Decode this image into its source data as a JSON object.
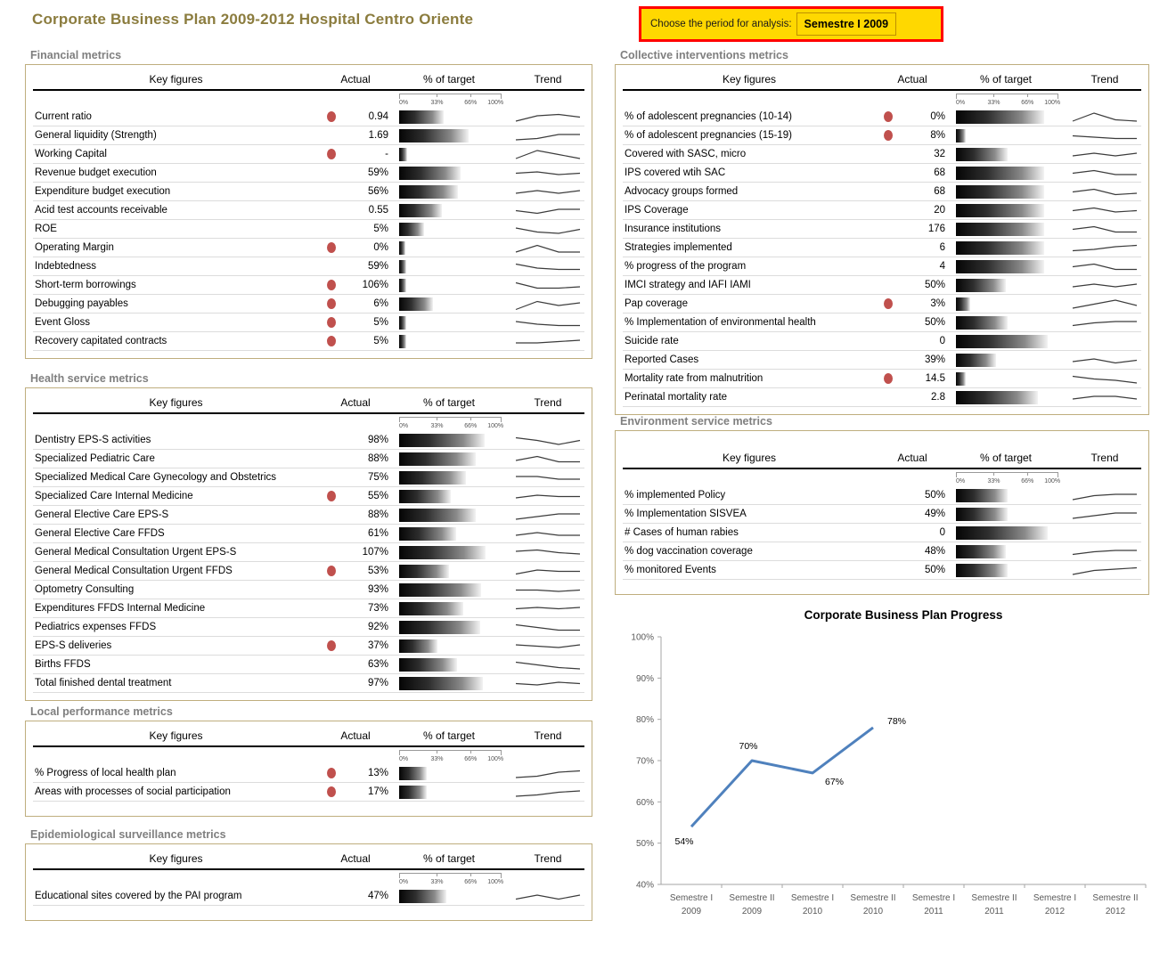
{
  "page": {
    "title": "Corporate Business Plan 2009-2012 Hospital Centro Oriente",
    "period_chooser": {
      "label": "Choose the period for analysis:",
      "value": "Semestre I 2009"
    }
  },
  "colors": {
    "title_color": "#8B7C3E",
    "section_title": "#7F7F7F",
    "box_border": "#BFAE7E",
    "alert_dot": "#C0504D",
    "chart_line": "#4F81BD",
    "axis": "#BFBFBF",
    "axis_text": "#595959",
    "period_bg": "#FFD800",
    "period_border": "#FF0000"
  },
  "table_headers": {
    "key_figures": "Key figures",
    "actual": "Actual",
    "pct_target": "% of target",
    "trend": "Trend"
  },
  "scale_labels": [
    "0%",
    "33%",
    "66%",
    "100%"
  ],
  "sections": [
    {
      "id": "financial",
      "title": "Financial metrics",
      "rows": [
        {
          "label": "Current ratio",
          "alert": true,
          "actual": "0.94",
          "bar": 45,
          "trend": [
            2,
            6,
            7,
            5
          ]
        },
        {
          "label": "General liquidity (Strength)",
          "alert": false,
          "actual": "1.69",
          "bar": 70,
          "trend": [
            2,
            3,
            6,
            6
          ]
        },
        {
          "label": "Working Capital",
          "alert": true,
          "actual": "-",
          "bar": 8,
          "trend": [
            2,
            8,
            5,
            2
          ]
        },
        {
          "label": "Revenue budget execution",
          "alert": false,
          "actual": "59%",
          "bar": 62,
          "trend": [
            5,
            6,
            4,
            5
          ]
        },
        {
          "label": "Expenditure budget execution",
          "alert": false,
          "actual": "56%",
          "bar": 59,
          "trend": [
            4,
            6,
            4,
            6
          ]
        },
        {
          "label": "Acid test accounts receivable",
          "alert": false,
          "actual": "0.55",
          "bar": 43,
          "trend": [
            5,
            3,
            6,
            6
          ]
        },
        {
          "label": "ROE",
          "alert": false,
          "actual": "5%",
          "bar": 25,
          "trend": [
            6,
            3,
            2,
            5
          ]
        },
        {
          "label": "Operating Margin",
          "alert": true,
          "actual": "0%",
          "bar": 6,
          "trend": [
            2,
            7,
            2,
            2
          ]
        },
        {
          "label": "Indebtedness",
          "alert": false,
          "actual": "59%",
          "bar": 7,
          "trend": [
            7,
            4,
            3,
            3
          ]
        },
        {
          "label": "Short-term borrowings",
          "alert": true,
          "actual": "106%",
          "bar": 7,
          "trend": [
            7,
            3,
            3,
            4
          ]
        },
        {
          "label": "Debugging payables",
          "alert": true,
          "actual": "6%",
          "bar": 34,
          "trend": [
            1,
            7,
            4,
            6
          ]
        },
        {
          "label": "Event Gloss",
          "alert": true,
          "actual": "5%",
          "bar": 7,
          "trend": [
            6,
            4,
            3,
            3
          ]
        },
        {
          "label": "Recovery capitated contracts",
          "alert": true,
          "actual": "5%",
          "bar": 7,
          "trend": [
            4,
            4,
            5,
            6
          ]
        }
      ]
    },
    {
      "id": "health",
      "title": "Health service metrics",
      "rows": [
        {
          "label": "Dentistry EPS-S activities",
          "alert": false,
          "actual": "98%",
          "bar": 86,
          "trend": [
            7,
            5,
            2,
            5
          ]
        },
        {
          "label": "Specialized Pediatric Care",
          "alert": false,
          "actual": "88%",
          "bar": 77,
          "trend": [
            4,
            7,
            3,
            3
          ]
        },
        {
          "label": "Specialized Medical Care Gynecology and Obstetrics",
          "alert": false,
          "actual": "75%",
          "bar": 67,
          "trend": [
            6,
            6,
            4,
            4
          ]
        },
        {
          "label": "Specialized Care Internal Medicine",
          "alert": true,
          "actual": "55%",
          "bar": 52,
          "trend": [
            4,
            6,
            5,
            5
          ]
        },
        {
          "label": "General Elective Care EPS-S",
          "alert": false,
          "actual": "88%",
          "bar": 77,
          "trend": [
            2,
            4,
            6,
            6
          ]
        },
        {
          "label": "General Elective Care FFDS",
          "alert": false,
          "actual": "61%",
          "bar": 57,
          "trend": [
            4,
            6,
            4,
            4
          ]
        },
        {
          "label": "General Medical Consultation Urgent EPS-S",
          "alert": false,
          "actual": "107%",
          "bar": 87,
          "trend": [
            6,
            7,
            5,
            4
          ]
        },
        {
          "label": "General Medical Consultation Urgent FFDS",
          "alert": true,
          "actual": "53%",
          "bar": 50,
          "trend": [
            3,
            6,
            5,
            5
          ]
        },
        {
          "label": "Optometry Consulting",
          "alert": false,
          "actual": "93%",
          "bar": 82,
          "trend": [
            5,
            5,
            4,
            5
          ]
        },
        {
          "label": "Expenditures FFDS Internal Medicine",
          "alert": false,
          "actual": "73%",
          "bar": 64,
          "trend": [
            5,
            6,
            5,
            6
          ]
        },
        {
          "label": "Pediatrics expenses FFDS",
          "alert": false,
          "actual": "92%",
          "bar": 81,
          "trend": [
            7,
            5,
            3,
            3
          ]
        },
        {
          "label": "EPS-S deliveries",
          "alert": true,
          "actual": "37%",
          "bar": 38,
          "trend": [
            6,
            5,
            4,
            6
          ]
        },
        {
          "label": "Births FFDS",
          "alert": false,
          "actual": "63%",
          "bar": 58,
          "trend": [
            7,
            5,
            3,
            2
          ]
        },
        {
          "label": "Total finished dental treatment",
          "alert": false,
          "actual": "97%",
          "bar": 84,
          "trend": [
            5,
            4,
            6,
            5
          ]
        }
      ]
    },
    {
      "id": "local",
      "title": "Local performance metrics",
      "rows": [
        {
          "label": "% Progress of local health plan",
          "alert": true,
          "actual": "13%",
          "bar": 28,
          "trend": [
            2,
            3,
            6,
            7
          ]
        },
        {
          "label": "Areas with processes of social participation",
          "alert": true,
          "actual": "17%",
          "bar": 28,
          "trend": [
            2,
            3,
            5,
            6
          ]
        }
      ]
    },
    {
      "id": "epidemiological",
      "title": "Epidemiological surveillance metrics",
      "rows": [
        {
          "label": "Educational sites covered by the PAI program",
          "alert": false,
          "actual": "47%",
          "bar": 47,
          "trend": [
            3,
            6,
            3,
            6
          ]
        }
      ]
    },
    {
      "id": "collective",
      "title": "Collective interventions metrics",
      "rows": [
        {
          "label": "% of adolescent pregnancies (10-14)",
          "alert": true,
          "actual": "0%",
          "bar": 88,
          "trend": [
            2,
            8,
            3,
            2
          ]
        },
        {
          "label": "% of adolescent pregnancies (15-19)",
          "alert": true,
          "actual": "8%",
          "bar": 10,
          "trend": [
            5,
            4,
            3,
            3
          ]
        },
        {
          "label": "Covered with SASC, micro",
          "alert": false,
          "actual": "32",
          "bar": 52,
          "trend": [
            4,
            6,
            4,
            6
          ]
        },
        {
          "label": "IPS covered wtih SAC",
          "alert": false,
          "actual": "68",
          "bar": 88,
          "trend": [
            5,
            7,
            4,
            4
          ]
        },
        {
          "label": "Advocacy groups formed",
          "alert": false,
          "actual": "68",
          "bar": 88,
          "trend": [
            5,
            7,
            3,
            4
          ]
        },
        {
          "label": "IPS Coverage",
          "alert": false,
          "actual": "20",
          "bar": 88,
          "trend": [
            5,
            7,
            4,
            5
          ]
        },
        {
          "label": "Insurance institutions",
          "alert": false,
          "actual": "176",
          "bar": 88,
          "trend": [
            5,
            7,
            3,
            3
          ]
        },
        {
          "label": "Strategies implemented",
          "alert": false,
          "actual": "6",
          "bar": 88,
          "trend": [
            3,
            4,
            6,
            7
          ]
        },
        {
          "label": "% progress of the program",
          "alert": false,
          "actual": "4",
          "bar": 88,
          "trend": [
            5,
            7,
            3,
            3
          ]
        },
        {
          "label": "IMCI strategy and IAFI IAMI",
          "alert": false,
          "actual": "50%",
          "bar": 50,
          "trend": [
            4,
            6,
            4,
            6
          ]
        },
        {
          "label": "Pap coverage",
          "alert": true,
          "actual": "3%",
          "bar": 14,
          "trend": [
            2,
            5,
            8,
            4
          ]
        },
        {
          "label": "% Implementation of environmental health",
          "alert": false,
          "actual": "50%",
          "bar": 52,
          "trend": [
            3,
            5,
            6,
            6
          ]
        },
        {
          "label": "Suicide rate",
          "alert": false,
          "actual": "0",
          "bar": 92,
          "trend": null
        },
        {
          "label": "Reported Cases",
          "alert": false,
          "actual": "39%",
          "bar": 40,
          "trend": [
            4,
            6,
            3,
            5
          ]
        },
        {
          "label": "Mortality rate from malnutrition",
          "alert": true,
          "actual": "14.5",
          "bar": 10,
          "trend": [
            7,
            5,
            4,
            2
          ]
        },
        {
          "label": "Perinatal mortality rate",
          "alert": false,
          "actual": "2.8",
          "bar": 82,
          "trend": [
            4,
            6,
            6,
            4
          ]
        }
      ]
    },
    {
      "id": "environment",
      "title": "Environment service metrics",
      "rows": [
        {
          "label": "% implemented Policy",
          "alert": false,
          "actual": "50%",
          "bar": 52,
          "trend": [
            2,
            5,
            6,
            6
          ]
        },
        {
          "label": "% Implementation SISVEA",
          "alert": false,
          "actual": "49%",
          "bar": 52,
          "trend": [
            2,
            4,
            6,
            6
          ]
        },
        {
          "label": "# Cases of human rabies",
          "alert": false,
          "actual": "0",
          "bar": 92,
          "trend": null
        },
        {
          "label": "% dog vaccination coverage",
          "alert": false,
          "actual": "48%",
          "bar": 50,
          "trend": [
            3,
            5,
            6,
            6
          ]
        },
        {
          "label": "% monitored Events",
          "alert": false,
          "actual": "50%",
          "bar": 52,
          "trend": [
            2,
            5,
            6,
            7
          ]
        }
      ]
    }
  ],
  "chart_data": {
    "type": "line",
    "title": "Corporate Business Plan Progress",
    "categories": [
      "Semestre I 2009",
      "Semestre II 2009",
      "Semestre I 2010",
      "Semestre II 2010",
      "Semestre I 2011",
      "Semestre II 2011",
      "Semestre I 2012",
      "Semestre II 2012"
    ],
    "values": [
      54,
      70,
      67,
      78
    ],
    "data_labels": [
      "54%",
      "70%",
      "67%",
      "78%"
    ],
    "label_offsets": [
      [
        -8,
        20,
        "middle"
      ],
      [
        -4,
        -13,
        "middle"
      ],
      [
        14,
        13,
        "start"
      ],
      [
        16,
        -4,
        "start"
      ]
    ],
    "ylim": [
      40,
      100
    ],
    "ytick_step": 10,
    "ytick_labels": [
      "40%",
      "50%",
      "60%",
      "70%",
      "80%",
      "90%",
      "100%"
    ],
    "xlabel": "",
    "ylabel": "",
    "legend": "none",
    "grid": "off",
    "line_color": "#4F81BD"
  }
}
